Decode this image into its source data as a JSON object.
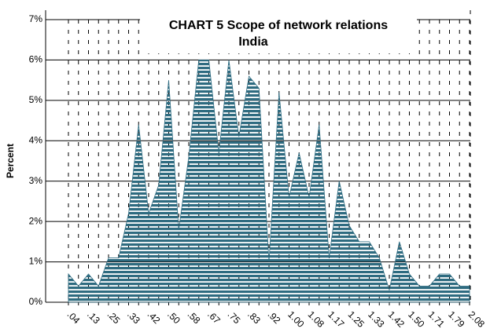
{
  "chart_data": {
    "type": "area",
    "title": "CHART 5 Scope of network relations",
    "subtitle": "India",
    "y_label": "Percent",
    "categories": [
      ".04",
      null,
      ".13",
      null,
      ".25",
      null,
      ".33",
      null,
      ".42",
      null,
      ".50",
      null,
      ".58",
      null,
      ".67",
      null,
      ".75",
      null,
      ".83",
      null,
      ".92",
      null,
      "1.00",
      null,
      "1.08",
      null,
      "1.17",
      null,
      "1.25",
      null,
      "1.33",
      null,
      "1.42",
      null,
      "1.50",
      null,
      "1.71",
      null,
      "1.79",
      null,
      "2.08"
    ],
    "values": [
      0.7,
      0.4,
      0.7,
      0.4,
      1.1,
      1.1,
      2.2,
      4.4,
      2.2,
      2.9,
      5.5,
      1.8,
      3.6,
      6.0,
      6.0,
      3.7,
      6.0,
      4.1,
      5.6,
      5.3,
      1.0,
      5.2,
      2.6,
      3.7,
      2.6,
      4.4,
      1.1,
      3.0,
      1.9,
      1.5,
      1.5,
      1.1,
      0.3,
      1.5,
      0.7,
      0.4,
      0.4,
      0.7,
      0.7,
      0.4,
      0.4
    ],
    "color": "#2e6b80",
    "ylim": [
      0,
      7
    ],
    "yticks": [
      {
        "value": 0,
        "label": "0%"
      },
      {
        "value": 1,
        "label": "1%"
      },
      {
        "value": 2,
        "label": "2%"
      },
      {
        "value": 3,
        "label": "3%"
      },
      {
        "value": 4,
        "label": "4%"
      },
      {
        "value": 5,
        "label": "5%"
      },
      {
        "value": 6,
        "label": "6%"
      },
      {
        "value": 7,
        "label": "7%"
      }
    ],
    "grid": true
  }
}
